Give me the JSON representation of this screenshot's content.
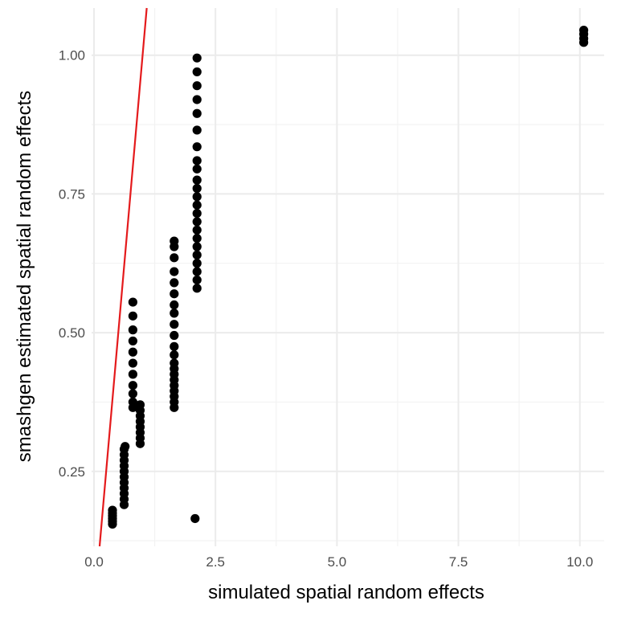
{
  "chart_data": {
    "type": "scatter",
    "title": "",
    "xlabel": "simulated spatial random effects",
    "ylabel": "smashgen estimated spatial random effects",
    "xlim": [
      -0.05,
      10.5
    ],
    "ylim": [
      0.115,
      1.085
    ],
    "x_ticks": [
      0,
      2.5,
      5,
      7.5,
      10
    ],
    "x_tick_labels": [
      "0.0",
      "2.5",
      "5.0",
      "7.5",
      "10.0"
    ],
    "y_ticks": [
      0.25,
      0.5,
      0.75,
      1.0
    ],
    "y_tick_labels": [
      "0.25",
      "0.50",
      "0.75",
      "1.00"
    ],
    "grid": true,
    "legend": "none",
    "colors": {
      "points": "#000000",
      "reference_line": "#e41a1c",
      "grid_major": "#ebebeb",
      "grid_minor": "#f2f2f2"
    },
    "reference_line": {
      "slope": 1,
      "intercept": 0
    },
    "series": [
      {
        "points": [
          [
            0.38,
            0.155
          ],
          [
            0.38,
            0.16
          ],
          [
            0.38,
            0.165
          ],
          [
            0.38,
            0.17
          ],
          [
            0.38,
            0.175
          ],
          [
            0.38,
            0.18
          ],
          [
            0.62,
            0.19
          ],
          [
            0.62,
            0.2
          ],
          [
            0.62,
            0.21
          ],
          [
            0.62,
            0.22
          ],
          [
            0.62,
            0.23
          ],
          [
            0.62,
            0.24
          ],
          [
            0.62,
            0.25
          ],
          [
            0.62,
            0.26
          ],
          [
            0.62,
            0.27
          ],
          [
            0.62,
            0.28
          ],
          [
            0.62,
            0.29
          ],
          [
            0.64,
            0.295
          ],
          [
            0.8,
            0.365
          ],
          [
            0.8,
            0.375
          ],
          [
            0.8,
            0.39
          ],
          [
            0.8,
            0.405
          ],
          [
            0.8,
            0.425
          ],
          [
            0.8,
            0.445
          ],
          [
            0.8,
            0.465
          ],
          [
            0.8,
            0.485
          ],
          [
            0.8,
            0.505
          ],
          [
            0.8,
            0.53
          ],
          [
            0.8,
            0.555
          ],
          [
            0.95,
            0.3
          ],
          [
            0.95,
            0.31
          ],
          [
            0.95,
            0.32
          ],
          [
            0.95,
            0.33
          ],
          [
            0.95,
            0.34
          ],
          [
            0.95,
            0.35
          ],
          [
            0.95,
            0.36
          ],
          [
            0.95,
            0.37
          ],
          [
            1.65,
            0.365
          ],
          [
            1.65,
            0.375
          ],
          [
            1.65,
            0.385
          ],
          [
            1.65,
            0.395
          ],
          [
            1.65,
            0.405
          ],
          [
            1.65,
            0.415
          ],
          [
            1.65,
            0.425
          ],
          [
            1.65,
            0.435
          ],
          [
            1.65,
            0.445
          ],
          [
            1.65,
            0.46
          ],
          [
            1.65,
            0.475
          ],
          [
            1.65,
            0.495
          ],
          [
            1.65,
            0.515
          ],
          [
            1.65,
            0.535
          ],
          [
            1.65,
            0.55
          ],
          [
            1.65,
            0.57
          ],
          [
            1.65,
            0.59
          ],
          [
            1.65,
            0.61
          ],
          [
            1.65,
            0.635
          ],
          [
            1.65,
            0.655
          ],
          [
            1.65,
            0.665
          ],
          [
            2.12,
            0.58
          ],
          [
            2.12,
            0.595
          ],
          [
            2.12,
            0.61
          ],
          [
            2.12,
            0.625
          ],
          [
            2.12,
            0.64
          ],
          [
            2.12,
            0.655
          ],
          [
            2.12,
            0.67
          ],
          [
            2.12,
            0.685
          ],
          [
            2.12,
            0.7
          ],
          [
            2.12,
            0.715
          ],
          [
            2.12,
            0.73
          ],
          [
            2.12,
            0.745
          ],
          [
            2.12,
            0.76
          ],
          [
            2.12,
            0.775
          ],
          [
            2.12,
            0.795
          ],
          [
            2.12,
            0.81
          ],
          [
            2.12,
            0.835
          ],
          [
            2.12,
            0.865
          ],
          [
            2.12,
            0.895
          ],
          [
            2.12,
            0.92
          ],
          [
            2.12,
            0.945
          ],
          [
            2.12,
            0.97
          ],
          [
            2.12,
            0.995
          ],
          [
            2.08,
            0.165
          ],
          [
            10.08,
            1.023
          ],
          [
            10.08,
            1.03
          ],
          [
            10.08,
            1.038
          ],
          [
            10.08,
            1.045
          ]
        ]
      }
    ]
  }
}
